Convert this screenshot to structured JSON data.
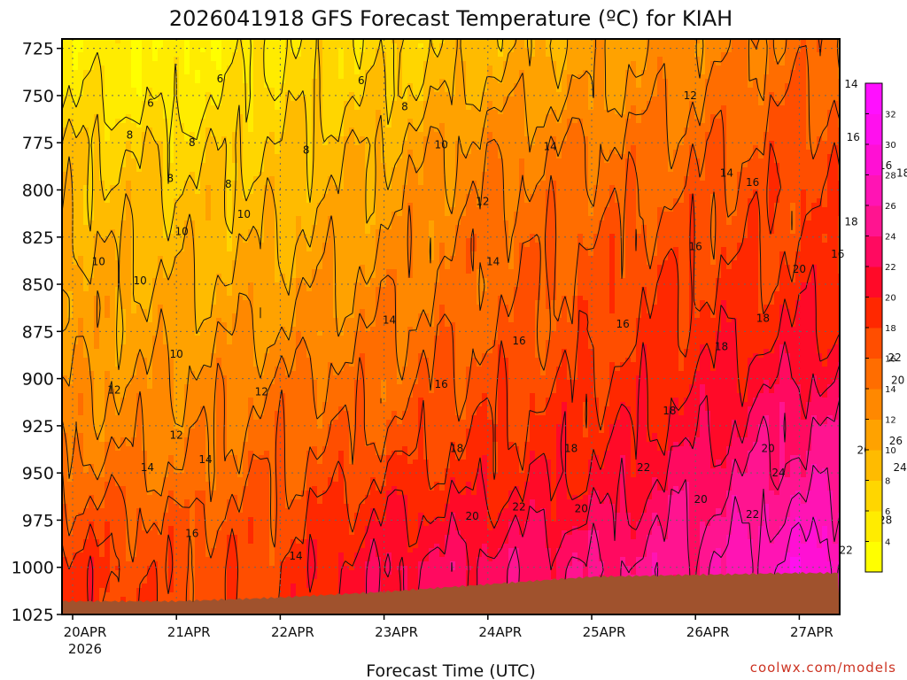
{
  "colors": {
    "terrain": "#a0522d",
    "grid": "#666666",
    "contour": "#111111",
    "credit": "#cc3322"
  },
  "chart_data": {
    "type": "heatmap",
    "title": "2026041918 GFS Forecast Temperature (ºC) for KIAH",
    "xlabel": "Forecast Time (UTC)",
    "ylabel": "",
    "credit": "coolwx.com/models",
    "y_scale": "pressure (hPa), increasing downward",
    "ylim": [
      1025,
      720
    ],
    "y_ticks": [
      "725",
      "750",
      "775",
      "800",
      "825",
      "850",
      "875",
      "900",
      "925",
      "950",
      "975",
      "1000",
      "1025"
    ],
    "x_ticks": [
      "20APR",
      "21APR",
      "22APR",
      "23APR",
      "24APR",
      "25APR",
      "26APR",
      "27APR"
    ],
    "x_tick_year": "2026",
    "grid": true,
    "colorbar": {
      "levels": [
        2,
        4,
        6,
        8,
        10,
        12,
        14,
        16,
        18,
        20,
        22,
        24,
        26,
        28,
        30,
        32,
        34
      ],
      "labels": [
        "4",
        "6",
        "8",
        "10",
        "12",
        "14",
        "16",
        "18",
        "20",
        "22",
        "24",
        "26",
        "28",
        "30",
        "32"
      ],
      "colors": [
        "#ffff00",
        "#ffec00",
        "#ffd600",
        "#ffbb00",
        "#ffa200",
        "#ff8800",
        "#ff6d00",
        "#ff4e00",
        "#ff2800",
        "#ff0a28",
        "#ff0a60",
        "#ff1490",
        "#ff14b4",
        "#ff10d4",
        "#ff10ee",
        "#ff10ff"
      ]
    },
    "times": [
      "20APR",
      "21APR",
      "22APR",
      "23APR",
      "24APR",
      "25APR",
      "26APR",
      "27APR"
    ],
    "surface_pressure": [
      1018,
      1018,
      1016,
      1013,
      1009,
      1005,
      1004,
      1003
    ],
    "series": [
      {
        "name": "725",
        "values": [
          5,
          4,
          6,
          7,
          9,
          11,
          13,
          15
        ]
      },
      {
        "name": "750",
        "values": [
          6,
          5,
          7,
          8,
          11,
          12,
          14,
          16
        ]
      },
      {
        "name": "775",
        "values": [
          8,
          7,
          8,
          10,
          13,
          14,
          15,
          17
        ]
      },
      {
        "name": "800",
        "values": [
          9,
          8,
          9,
          11,
          14,
          15,
          16,
          18
        ]
      },
      {
        "name": "825",
        "values": [
          10,
          9,
          10,
          12,
          15,
          16,
          17,
          18
        ]
      },
      {
        "name": "850",
        "values": [
          11,
          10,
          11,
          13,
          15,
          17,
          18,
          19
        ]
      },
      {
        "name": "875",
        "values": [
          11,
          11,
          12,
          14,
          16,
          17,
          19,
          20
        ]
      },
      {
        "name": "900",
        "values": [
          12,
          12,
          14,
          15,
          17,
          18,
          20,
          22
        ]
      },
      {
        "name": "925",
        "values": [
          13,
          13,
          15,
          16,
          18,
          19,
          21,
          24
        ]
      },
      {
        "name": "950",
        "values": [
          15,
          14,
          16,
          18,
          19,
          20,
          23,
          25
        ]
      },
      {
        "name": "975",
        "values": [
          17,
          16,
          17,
          20,
          21,
          22,
          24,
          27
        ]
      },
      {
        "name": "1000",
        "values": [
          19,
          17,
          18,
          22,
          23,
          24,
          25,
          29
        ]
      }
    ],
    "contour_labels": [
      {
        "text": "6",
        "t": 0.75,
        "p": 754
      },
      {
        "text": "6",
        "t": 1.42,
        "p": 741
      },
      {
        "text": "6",
        "t": 2.78,
        "p": 742
      },
      {
        "text": "8",
        "t": 0.55,
        "p": 771
      },
      {
        "text": "8",
        "t": 1.15,
        "p": 775
      },
      {
        "text": "8",
        "t": 0.94,
        "p": 794
      },
      {
        "text": "8",
        "t": 1.5,
        "p": 797
      },
      {
        "text": "8",
        "t": 2.25,
        "p": 779
      },
      {
        "text": "8",
        "t": 3.2,
        "p": 756
      },
      {
        "text": "10",
        "t": 1.05,
        "p": 822
      },
      {
        "text": "10",
        "t": 1.65,
        "p": 813
      },
      {
        "text": "10",
        "t": 0.25,
        "p": 838
      },
      {
        "text": "10",
        "t": 0.65,
        "p": 848
      },
      {
        "text": "10",
        "t": 1.0,
        "p": 887
      },
      {
        "text": "10",
        "t": 3.55,
        "p": 776
      },
      {
        "text": "12",
        "t": 0.4,
        "p": 906
      },
      {
        "text": "12",
        "t": 1.82,
        "p": 907
      },
      {
        "text": "12",
        "t": 1.0,
        "p": 930
      },
      {
        "text": "12",
        "t": 3.95,
        "p": 806
      },
      {
        "text": "12",
        "t": 5.95,
        "p": 750
      },
      {
        "text": "14",
        "t": 0.72,
        "p": 947
      },
      {
        "text": "14",
        "t": 1.28,
        "p": 943
      },
      {
        "text": "14",
        "t": 2.15,
        "p": 994
      },
      {
        "text": "14",
        "t": 3.05,
        "p": 869
      },
      {
        "text": "14",
        "t": 4.05,
        "p": 838
      },
      {
        "text": "14",
        "t": 4.6,
        "p": 777
      },
      {
        "text": "14",
        "t": 6.3,
        "p": 791
      },
      {
        "text": "14",
        "t": 7.5,
        "p": 744
      },
      {
        "text": "16",
        "t": 1.15,
        "p": 982
      },
      {
        "text": "16",
        "t": 3.55,
        "p": 903
      },
      {
        "text": "16",
        "t": 4.3,
        "p": 880
      },
      {
        "text": "16",
        "t": 5.3,
        "p": 871
      },
      {
        "text": "16",
        "t": 6.0,
        "p": 830
      },
      {
        "text": "16",
        "t": 7.37,
        "p": 834
      },
      {
        "text": "16",
        "t": 7.52,
        "p": 772
      },
      {
        "text": "16",
        "t": 7.83,
        "p": 787
      },
      {
        "text": "16",
        "t": 6.55,
        "p": 796
      },
      {
        "text": "18",
        "t": 3.7,
        "p": 937
      },
      {
        "text": "18",
        "t": 4.8,
        "p": 937
      },
      {
        "text": "18",
        "t": 5.75,
        "p": 917
      },
      {
        "text": "18",
        "t": 6.65,
        "p": 868
      },
      {
        "text": "18",
        "t": 6.25,
        "p": 883
      },
      {
        "text": "18",
        "t": 7.5,
        "p": 817
      },
      {
        "text": "18",
        "t": 8.0,
        "p": 791
      },
      {
        "text": "20",
        "t": 4.9,
        "p": 969
      },
      {
        "text": "20",
        "t": 3.85,
        "p": 973
      },
      {
        "text": "20",
        "t": 6.05,
        "p": 964
      },
      {
        "text": "20",
        "t": 6.7,
        "p": 937
      },
      {
        "text": "20",
        "t": 7.0,
        "p": 842
      },
      {
        "text": "20",
        "t": 7.62,
        "p": 938
      },
      {
        "text": "20",
        "t": 7.95,
        "p": 901
      },
      {
        "text": "22",
        "t": 4.3,
        "p": 968
      },
      {
        "text": "22",
        "t": 5.5,
        "p": 947
      },
      {
        "text": "22",
        "t": 6.55,
        "p": 972
      },
      {
        "text": "22",
        "t": 7.45,
        "p": 991
      },
      {
        "text": "22",
        "t": 7.92,
        "p": 889
      },
      {
        "text": "24",
        "t": 6.8,
        "p": 950
      },
      {
        "text": "24",
        "t": 7.7,
        "p": 983
      },
      {
        "text": "24",
        "t": 7.97,
        "p": 947
      },
      {
        "text": "26",
        "t": 7.93,
        "p": 933
      },
      {
        "text": "28",
        "t": 7.83,
        "p": 975
      }
    ]
  }
}
